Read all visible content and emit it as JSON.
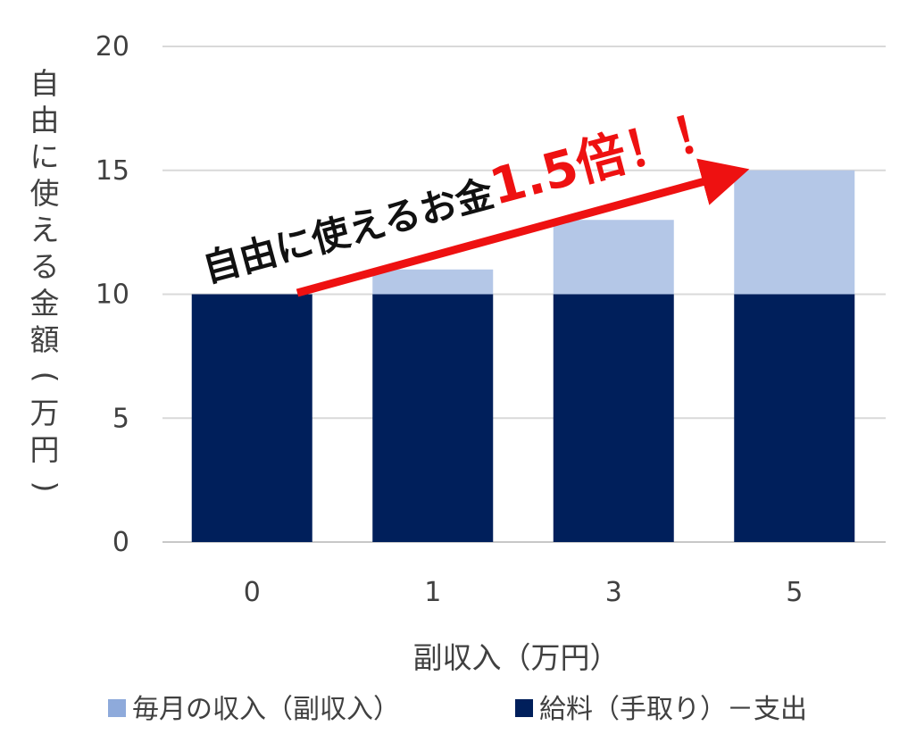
{
  "chart_data": {
    "type": "bar",
    "stacked": true,
    "categories": [
      "0",
      "1",
      "3",
      "5"
    ],
    "series": [
      {
        "name": "給料（手取り）－支出",
        "values": [
          10,
          10,
          10,
          10
        ],
        "color": "#001f5b"
      },
      {
        "name": "毎月の収入（副収入）",
        "values": [
          0,
          1,
          3,
          5
        ],
        "color": "#b4c7e7"
      }
    ],
    "xlabel": "副収入（万円）",
    "ylabel": "自由に使える金額（万円）",
    "ylim": [
      0,
      20
    ],
    "yticks": [
      0,
      5,
      10,
      15,
      20
    ],
    "grid": true,
    "legend_position": "bottom",
    "annotation": {
      "text": "自由に使えるお金",
      "emphasis": "1.5倍！！",
      "arrow_color": "#ee1111"
    }
  }
}
